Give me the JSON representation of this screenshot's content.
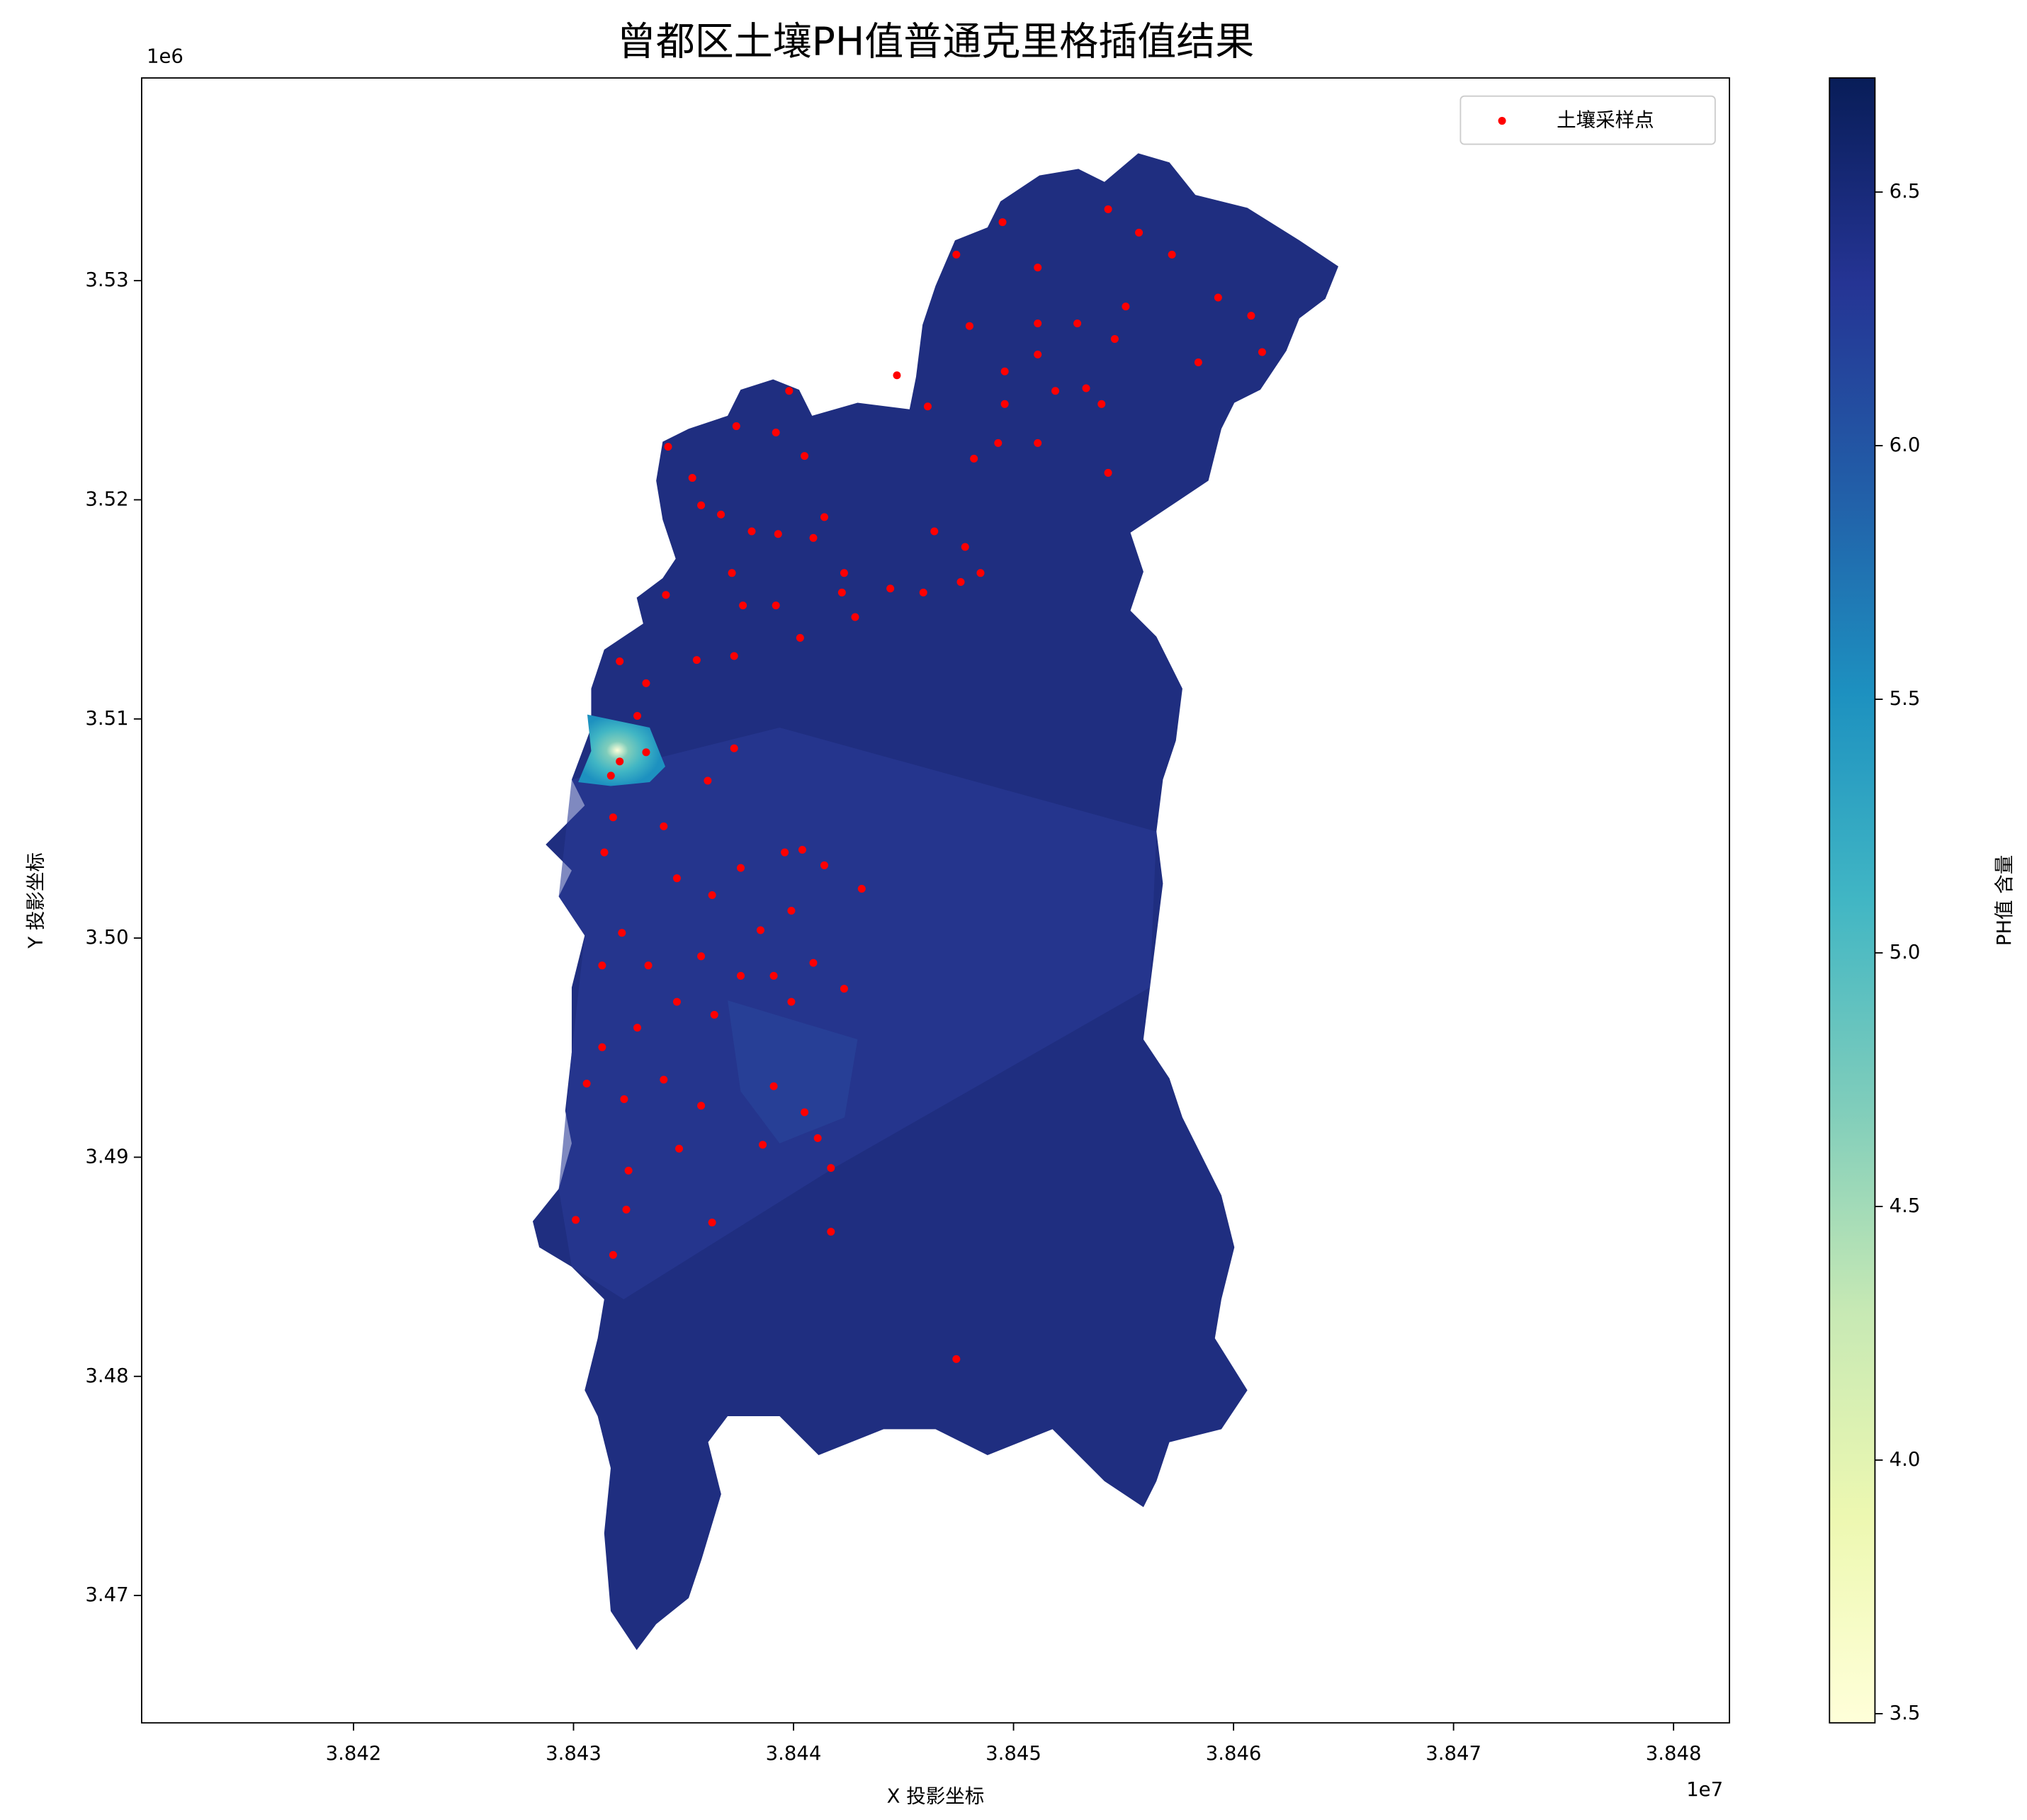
{
  "chart_data": {
    "type": "scatter",
    "title": "曾都区土壤PH值普通克里格插值结果",
    "x_label": "X 投影坐标",
    "y_label": "Y 投影坐标",
    "x_offset_label": "1e7",
    "y_offset_label": "1e6",
    "xlim": [
      3.841037,
      3.848254
    ],
    "ylim": [
      3.46419,
      3.53925
    ],
    "xticks": [
      3.842,
      3.843,
      3.844,
      3.845,
      3.846,
      3.847,
      3.848
    ],
    "yticks": [
      3.47,
      3.48,
      3.49,
      {
        "value": 3.5,
        "label": "3.50"
      },
      3.51,
      3.52,
      3.53
    ],
    "legend": "upper right",
    "x": [
      3.84321,
      3.84317,
      3.84333,
      3.84343,
      3.84354,
      3.84374,
      3.84392,
      3.84398,
      3.84405,
      3.84381,
      3.84393,
      3.84409,
      3.84423,
      3.84444,
      3.84459,
      3.84422,
      3.84403,
      3.84377,
      3.84342,
      3.84321,
      3.84333,
      3.84356,
      3.84373,
      3.84373,
      3.84361,
      3.84318,
      3.84341,
      3.84314,
      3.84347,
      3.84363,
      3.84376,
      3.84396,
      3.84404,
      3.84414,
      3.84431,
      3.84399,
      3.84385,
      3.84322,
      3.84313,
      3.84334,
      3.84358,
      3.84376,
      3.84391,
      3.84409,
      3.84423,
      3.84399,
      3.84364,
      3.84347,
      3.84329,
      3.84313,
      3.84306,
      3.84323,
      3.84341,
      3.84358,
      3.84391,
      3.84405,
      3.84411,
      3.84417,
      3.84386,
      3.84348,
      3.84325,
      3.84324,
      3.84301,
      3.84318,
      3.84363,
      3.84417,
      3.84474,
      3.84474,
      3.84495,
      3.84511,
      3.8448,
      3.84511,
      3.84529,
      3.84496,
      3.84511,
      3.84447,
      3.84461,
      3.84496,
      3.84519,
      3.84533,
      3.84543,
      3.84557,
      3.84572,
      3.84593,
      3.84608,
      3.84613,
      3.84584,
      3.84551,
      3.84546,
      3.8454,
      3.84543,
      3.84511,
      3.84493,
      3.84482,
      3.84478,
      3.84464,
      3.84476,
      3.84485,
      3.84392,
      3.84414,
      3.84428,
      3.84372,
      3.84367,
      3.84358,
      3.84329
    ],
    "series": [
      {
        "name": "土壤采样点",
        "color": "#ff0000",
        "values": [
          3.50806,
          3.50741,
          3.50848,
          3.52242,
          3.521,
          3.52336,
          3.52307,
          3.52497,
          3.522,
          3.51856,
          3.51844,
          3.51826,
          3.51666,
          3.51595,
          3.51577,
          3.51577,
          3.5137,
          3.51518,
          3.51566,
          3.51263,
          3.51163,
          3.51269,
          3.51287,
          3.50866,
          3.50718,
          3.50551,
          3.5051,
          3.50391,
          3.50273,
          3.50196,
          3.5032,
          3.50391,
          3.50403,
          3.50332,
          3.50225,
          3.50125,
          3.50036,
          3.50024,
          3.49875,
          3.49875,
          3.49917,
          3.49828,
          3.49828,
          3.49887,
          3.49769,
          3.49709,
          3.4965,
          3.49709,
          3.49591,
          3.49502,
          3.49336,
          3.49265,
          3.49354,
          3.49235,
          3.49324,
          3.49205,
          3.49087,
          3.48951,
          3.49057,
          3.49039,
          3.48939,
          3.48761,
          3.48714,
          3.48554,
          3.48702,
          3.4866,
          3.48079,
          3.53119,
          3.53267,
          3.5306,
          3.52793,
          3.52805,
          3.52805,
          3.52586,
          3.52663,
          3.52568,
          3.52426,
          3.52437,
          3.52497,
          3.52509,
          3.53326,
          3.53219,
          3.53119,
          3.52923,
          3.5284,
          3.52674,
          3.52627,
          3.52882,
          3.52734,
          3.52437,
          3.52123,
          3.52259,
          3.52259,
          3.52188,
          3.51785,
          3.51856,
          3.51625,
          3.51666,
          3.51518,
          3.51921,
          3.51465,
          3.51666,
          3.51933,
          3.51975,
          3.51014
        ]
      }
    ],
    "colorbar": {
      "label": "PH值 含量",
      "lim": [
        3.482,
        6.725
      ],
      "ticks": [
        3.5,
        {
          "value": 4.0,
          "label": "4.0"
        },
        4.5,
        {
          "value": 5.0,
          "label": "5.0"
        },
        5.5,
        {
          "value": 6.0,
          "label": "6.0"
        },
        6.5
      ],
      "colors": [
        "#ffffd9",
        "#edf8b1",
        "#c7e9b4",
        "#7fcdbb",
        "#41b6c4",
        "#1d91c0",
        "#225ea8",
        "#253494",
        "#081d58"
      ]
    }
  }
}
